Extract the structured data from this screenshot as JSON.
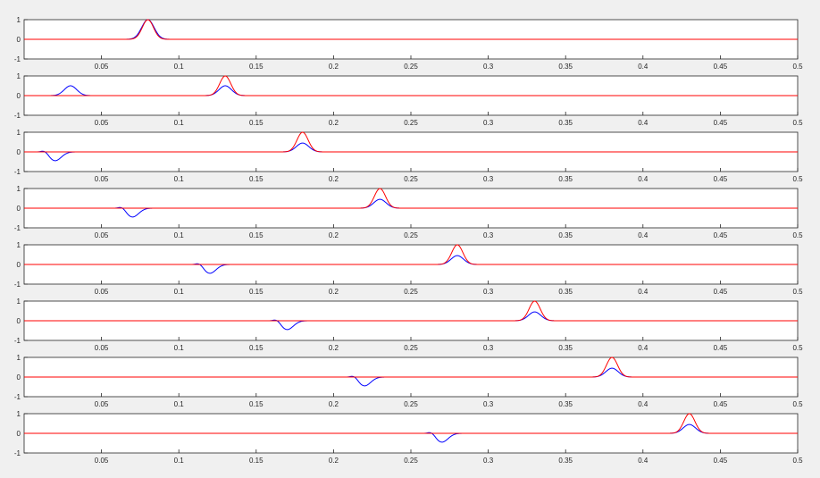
{
  "chart_data": {
    "type": "line",
    "layout": "8 stacked subplots sharing the same x axis",
    "grid": false,
    "legend": "none",
    "xlim": [
      0,
      0.5
    ],
    "ylim": [
      -1,
      1
    ],
    "x_tick_labels": [
      "0.05",
      "0.1",
      "0.15",
      "0.2",
      "0.25",
      "0.3",
      "0.35",
      "0.4",
      "0.45",
      "0.5"
    ],
    "x_ticks": [
      0.05,
      0.1,
      0.15,
      0.2,
      0.25,
      0.3,
      0.35,
      0.4,
      0.45,
      0.5
    ],
    "y_tick_labels": [
      "1",
      "0",
      "-1"
    ],
    "y_ticks": [
      1,
      0,
      -1
    ],
    "series_colors": {
      "red": "#ff0000",
      "blue": "#0000ff"
    },
    "panels": [
      {
        "red_peak": {
          "x": 0.08,
          "y": 1.0
        },
        "blue_peaks": [
          {
            "x": 0.08,
            "y": 1.0
          }
        ]
      },
      {
        "red_peak": {
          "x": 0.13,
          "y": 1.0
        },
        "blue_peaks": [
          {
            "x": 0.03,
            "y": 0.5
          },
          {
            "x": 0.13,
            "y": 0.5
          }
        ]
      },
      {
        "red_peak": {
          "x": 0.18,
          "y": 1.0
        },
        "blue_peaks": [
          {
            "x": 0.02,
            "y": -0.45
          },
          {
            "x": 0.18,
            "y": 0.45
          }
        ]
      },
      {
        "red_peak": {
          "x": 0.23,
          "y": 1.0
        },
        "blue_peaks": [
          {
            "x": 0.07,
            "y": -0.45
          },
          {
            "x": 0.23,
            "y": 0.45
          }
        ]
      },
      {
        "red_peak": {
          "x": 0.28,
          "y": 1.0
        },
        "blue_peaks": [
          {
            "x": 0.12,
            "y": -0.45
          },
          {
            "x": 0.28,
            "y": 0.45
          }
        ]
      },
      {
        "red_peak": {
          "x": 0.33,
          "y": 1.0
        },
        "blue_peaks": [
          {
            "x": 0.17,
            "y": -0.45
          },
          {
            "x": 0.33,
            "y": 0.45
          }
        ]
      },
      {
        "red_peak": {
          "x": 0.38,
          "y": 1.0
        },
        "blue_peaks": [
          {
            "x": 0.22,
            "y": -0.45
          },
          {
            "x": 0.38,
            "y": 0.45
          }
        ]
      },
      {
        "red_peak": {
          "x": 0.43,
          "y": 1.0
        },
        "blue_peaks": [
          {
            "x": 0.27,
            "y": -0.45
          },
          {
            "x": 0.43,
            "y": 0.45
          }
        ]
      }
    ]
  }
}
